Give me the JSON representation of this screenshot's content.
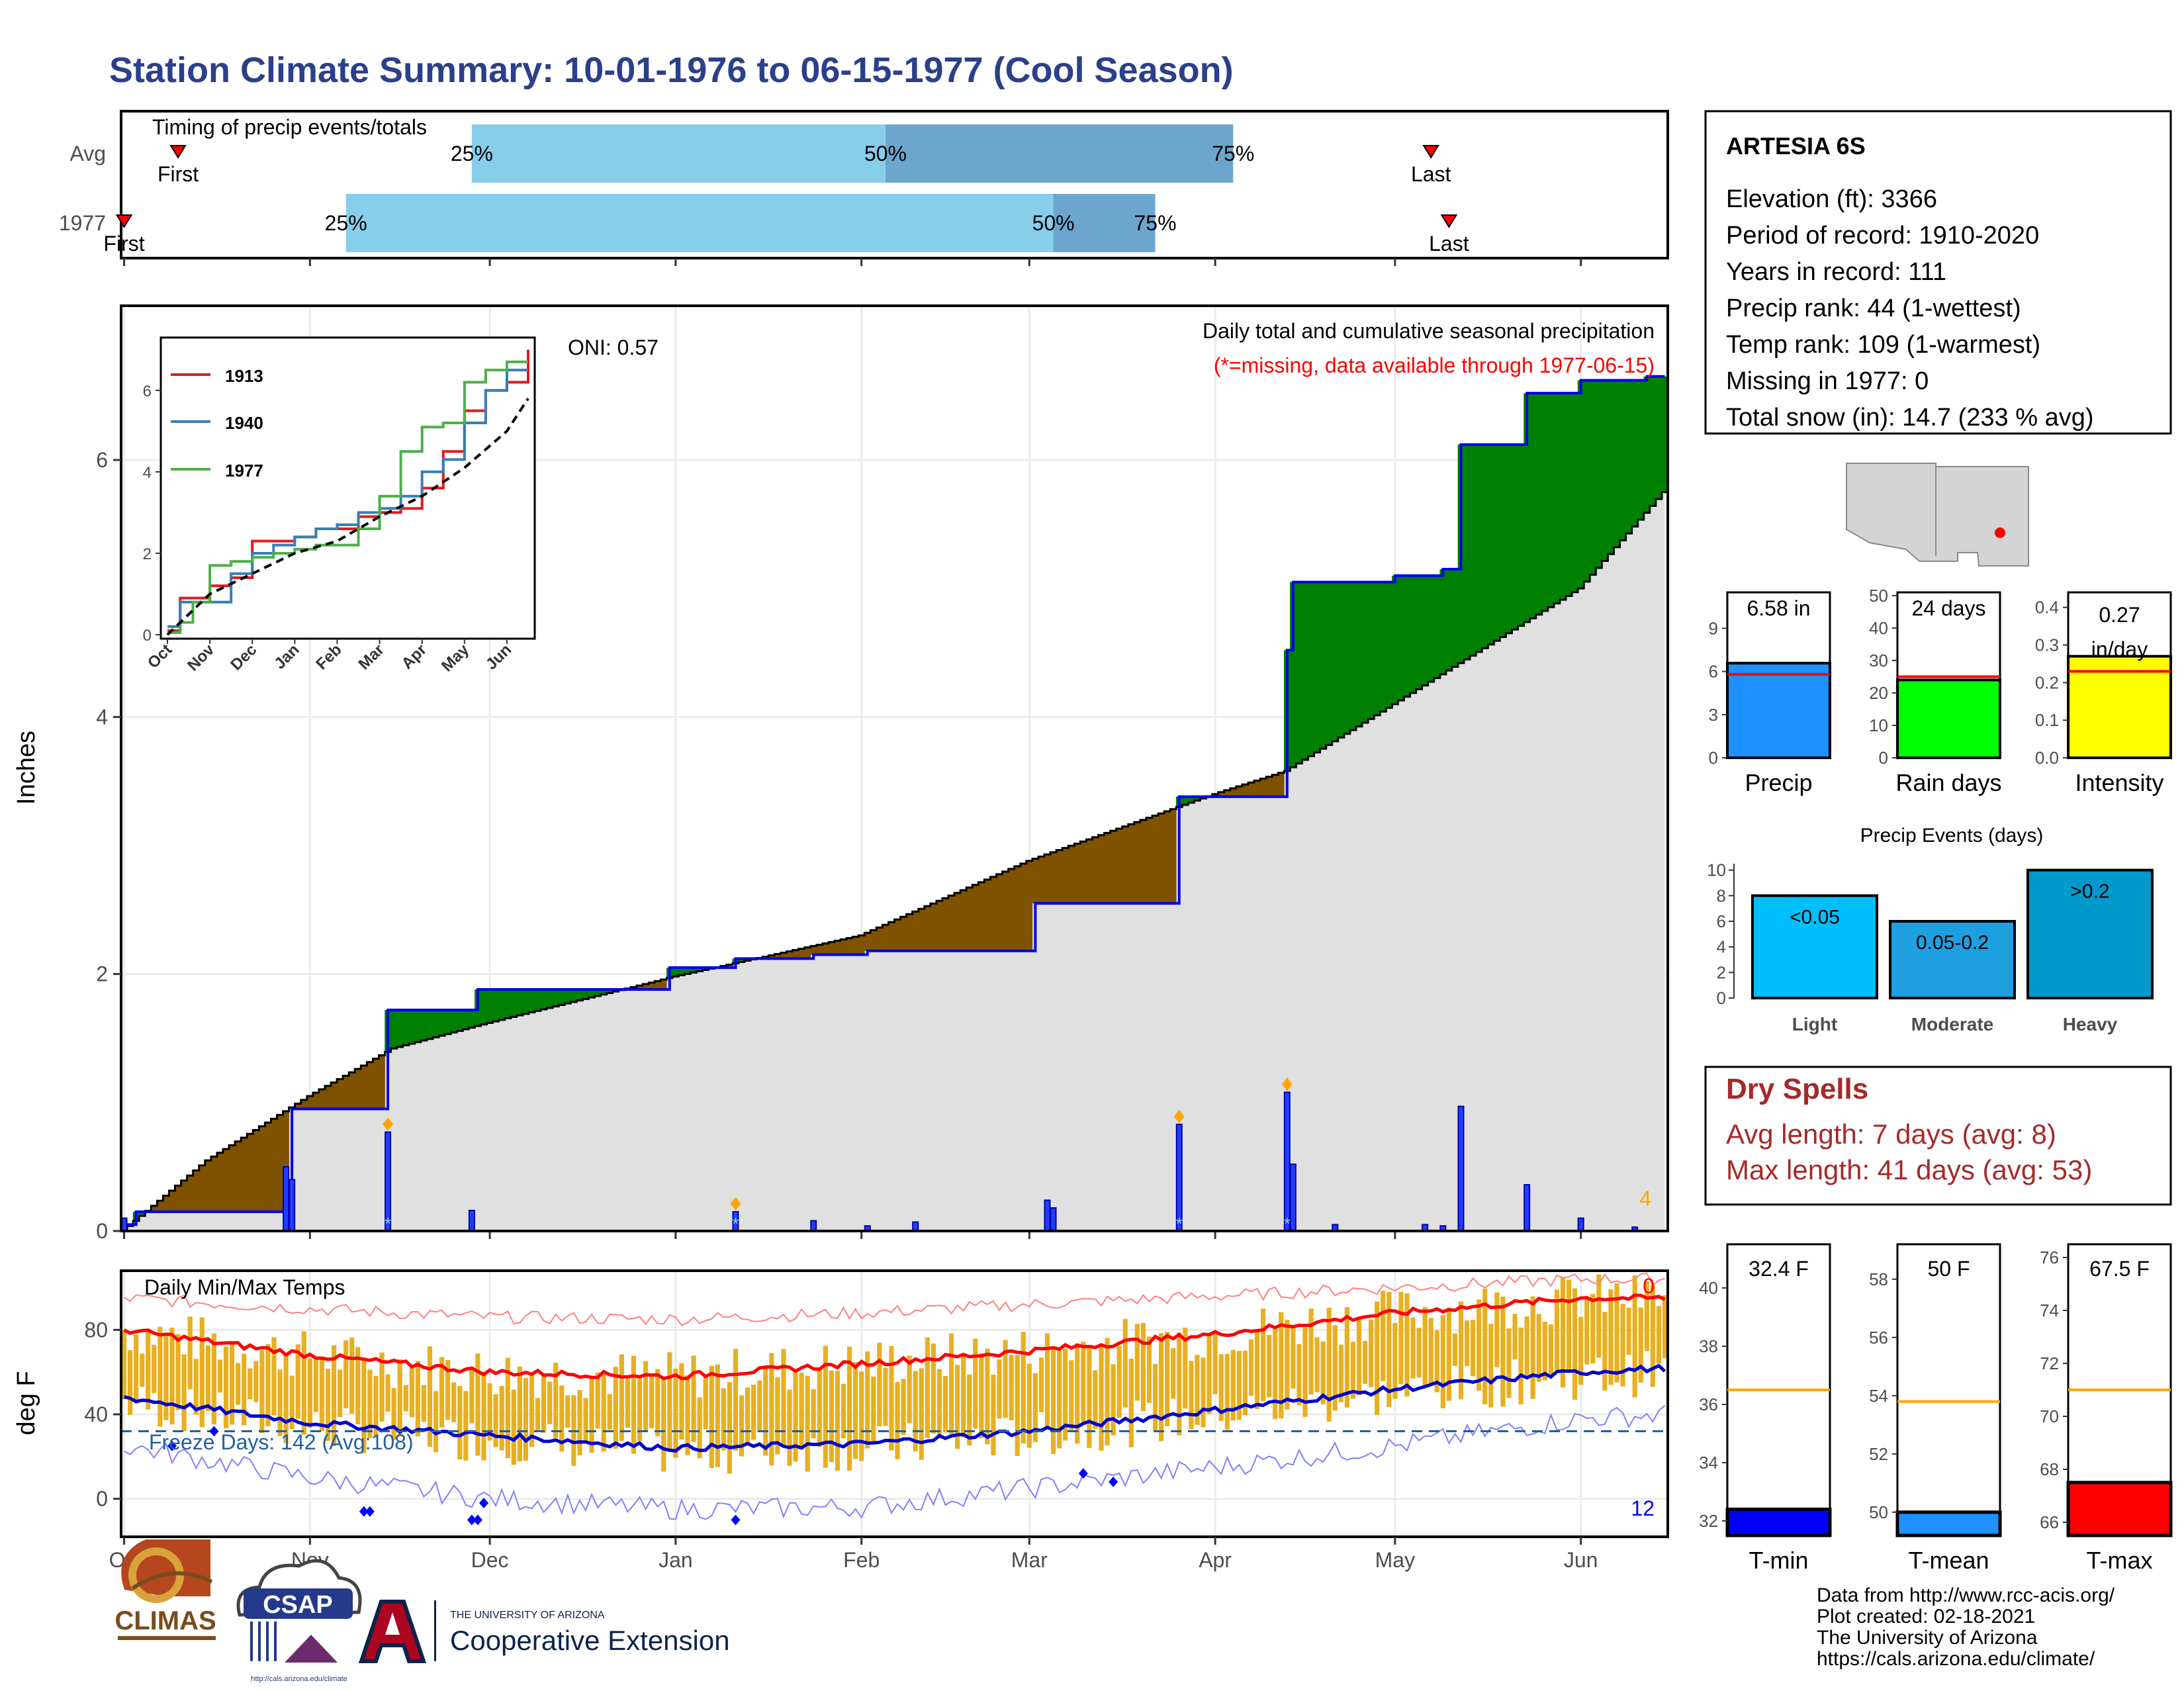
{
  "page": {
    "title": "Station Climate Summary: 10-01-1976 to 06-15-1977 (Cool Season)",
    "title_color": "#2b3f8a"
  },
  "timing": {
    "title": "Timing of precip events/totals",
    "rows": [
      {
        "label": "Avg",
        "q25": "25%",
        "q50": "50%",
        "q75": "75%",
        "first": "First",
        "last": "Last",
        "first_day": 9,
        "q25_day": 58,
        "q50_day": 127,
        "q75_day": 185,
        "last_day": 218
      },
      {
        "label": "1977",
        "q25": "25%",
        "q50": "50%",
        "q75": "75%",
        "first": "First",
        "last": "Last",
        "first_day": 0,
        "q25_day": 37,
        "q50_day": 155,
        "q75_day": 172,
        "last_day": 221
      }
    ]
  },
  "precip_panel": {
    "ylabel": "Inches",
    "oni": "ONI: 0.57",
    "header": "Daily total and cumulative seasonal precipitation",
    "missing_note": "(*=missing, data available through 1977-06-15)",
    "snow_count": "4",
    "yticks": [
      "0",
      "2",
      "4",
      "6"
    ],
    "colors": {
      "drier": "#7f5200",
      "wetter": "#008000",
      "avg_fill": "#e0e0e0",
      "obs_line": "#0000ee",
      "snow": "#ffa500"
    }
  },
  "inset": {
    "yticks": [
      "0",
      "2",
      "4",
      "6"
    ],
    "months": [
      "Oct",
      "Nov",
      "Dec",
      "Jan",
      "Feb",
      "Mar",
      "Apr",
      "May",
      "Jun"
    ],
    "legend": [
      {
        "name": "1913",
        "color": "#e41a1c"
      },
      {
        "name": "1940",
        "color": "#377eb8"
      },
      {
        "name": "1977",
        "color": "#4daf4a"
      }
    ]
  },
  "temp_panel": {
    "ylabel": "deg F",
    "title": "Daily Min/Max Temps",
    "freeze_label": "Freeze Days: 142 (Avg:108)",
    "hot_count": "0",
    "cold_count": "12",
    "yticks": [
      "0",
      "40",
      "80"
    ],
    "months": [
      "Oct",
      "Nov",
      "Dec",
      "Jan",
      "Feb",
      "Mar",
      "Apr",
      "May",
      "Jun"
    ]
  },
  "station": {
    "name": "ARTESIA 6S",
    "lines": [
      "Elevation (ft): 3366",
      "Period of record: 1910-2020",
      "Years in record: 111",
      "Precip rank: 44 (1-wettest)",
      "Temp rank: 109 (1-warmest)",
      "Missing in 1977: 0",
      "Total snow (in): 14.7 (233 % avg)"
    ]
  },
  "summary_bars": [
    {
      "label": "Precip",
      "value_text": "6.58 in",
      "value": 6.58,
      "avg": 5.8,
      "ymax": 11.5,
      "ticks": [
        "0",
        "3",
        "6",
        "9"
      ],
      "tick_vals": [
        0,
        3,
        6,
        9
      ],
      "color": "#1e90ff"
    },
    {
      "label": "Rain days",
      "value_text": "24 days",
      "value": 24,
      "avg": 25,
      "ymax": 51,
      "ticks": [
        "0",
        "10",
        "20",
        "30",
        "40",
        "50"
      ],
      "tick_vals": [
        0,
        10,
        20,
        30,
        40,
        50
      ],
      "color": "#00ff00"
    },
    {
      "label": "Intensity",
      "value_text": "0.27 in/day",
      "value": 0.27,
      "avg": 0.23,
      "ymax": 0.44,
      "ticks": [
        "0.0",
        "0.1",
        "0.2",
        "0.3",
        "0.4"
      ],
      "tick_vals": [
        0,
        0.1,
        0.2,
        0.3,
        0.4
      ],
      "color": "#ffff00"
    }
  ],
  "precip_events": {
    "title": "Precip Events (days)",
    "categories": [
      "Light",
      "Moderate",
      "Heavy"
    ],
    "bar_labels": [
      "<0.05",
      "0.05-0.2",
      ">0.2"
    ],
    "values": [
      8,
      6,
      10
    ],
    "ticks": [
      "0",
      "2",
      "4",
      "6",
      "8",
      "10"
    ],
    "colors": [
      "#00bfff",
      "#1e9fe0",
      "#0099cc"
    ]
  },
  "dry_spells": {
    "title": "Dry Spells",
    "avg_line": "Avg length: 7 days (avg: 8)",
    "max_line": "Max length: 41 days (avg: 53)",
    "color": "#a52a2a"
  },
  "temp_bars": [
    {
      "label": "T-min",
      "value_text": "32.4 F",
      "value": 32.4,
      "avg": 36.5,
      "ymin": 31.5,
      "ymax": 41.5,
      "ticks": [
        "32",
        "34",
        "36",
        "38",
        "40"
      ],
      "tick_vals": [
        32,
        34,
        36,
        38,
        40
      ],
      "color": "#0000ff"
    },
    {
      "label": "T-mean",
      "value_text": "50 F",
      "value": 50.0,
      "avg": 53.8,
      "ymin": 49.2,
      "ymax": 59.2,
      "ticks": [
        "50",
        "52",
        "54",
        "56",
        "58"
      ],
      "tick_vals": [
        50,
        52,
        54,
        56,
        58
      ],
      "color": "#1e90ff"
    },
    {
      "label": "T-max",
      "value_text": "67.5 F",
      "value": 67.5,
      "avg": 71.0,
      "ymin": 65.5,
      "ymax": 76.5,
      "ticks": [
        "66",
        "68",
        "70",
        "72",
        "74",
        "76"
      ],
      "tick_vals": [
        66,
        68,
        70,
        72,
        74,
        76
      ],
      "color": "#ff0000"
    }
  ],
  "logos": {
    "climas": "CLIMAS",
    "csap": "CSAP",
    "csap_url": "http://cals.arizona.edu/climate",
    "ua_small": "THE UNIVERSITY OF ARIZONA",
    "ua_big": "Cooperative Extension"
  },
  "credits": [
    "Data from http://www.rcc-acis.org/",
    "Plot created: 02-18-2021",
    "The University of Arizona",
    "https://cals.arizona.edu/climate/"
  ],
  "chart_data": [
    {
      "type": "area",
      "title": "Daily total and cumulative seasonal precipitation",
      "ylabel": "Inches",
      "ylim": [
        0,
        7.2
      ],
      "x_range": [
        "1976-10-01",
        "1977-06-15"
      ],
      "series": [
        {
          "name": "",
          "x": [
            "1976-10-01",
            "1976-10-03",
            "1976-10-29",
            "1976-11-14",
            "1976-11-29",
            "1976-12-31",
            "1977-01-11",
            "1977-01-24",
            "1977-02-02",
            "1977-03-02",
            "1977-03-26",
            "1977-04-13",
            "1977-04-14",
            "1977-05-01",
            "1977-05-09",
            "1977-05-12",
            "1977-05-23",
            "1977-06-01",
            "1977-06-12",
            "1977-06-15"
          ],
          "values": [
            0.05,
            0.15,
            0.95,
            1.72,
            1.88,
            2.05,
            2.12,
            2.15,
            2.18,
            2.55,
            3.38,
            4.52,
            5.05,
            5.1,
            5.15,
            6.12,
            6.52,
            6.62,
            6.65,
            6.65
          ]
        }
      ],
      "daily_precip": {
        "dates": [
          "1976-10-01",
          "1976-10-28",
          "1976-10-29",
          "1976-11-14",
          "1976-11-28",
          "1977-01-11",
          "1977-01-24",
          "1977-02-02",
          "1977-02-10",
          "1977-03-04",
          "1977-03-05",
          "1977-03-26",
          "1977-04-13",
          "1977-04-14",
          "1977-04-21",
          "1977-05-06",
          "1977-05-09",
          "1977-05-12",
          "1977-05-23",
          "1977-06-01",
          "1977-06-10"
        ],
        "values": [
          0.1,
          0.5,
          0.4,
          0.77,
          0.16,
          0.15,
          0.08,
          0.04,
          0.07,
          0.24,
          0.18,
          0.83,
          1.08,
          0.52,
          0.05,
          0.05,
          0.04,
          0.97,
          0.36,
          0.1,
          0.03
        ],
        "snow_dates": [
          "1976-11-14",
          "1977-01-11",
          "1977-03-26",
          "1977-04-13"
        ]
      },
      "avg_cumulative": {
        "dates": [
          "1976-10-01",
          "1976-10-15",
          "1976-11-01",
          "1976-11-15",
          "1976-12-01",
          "1977-01-01",
          "1977-02-01",
          "1977-03-01",
          "1977-04-01",
          "1977-04-13",
          "1977-05-01",
          "1977-06-01",
          "1977-06-15"
        ],
        "values": [
          0.0,
          0.55,
          1.05,
          1.42,
          1.62,
          1.98,
          2.3,
          2.88,
          3.4,
          3.58,
          4.1,
          5.0,
          5.75
        ]
      }
    },
    {
      "type": "line",
      "title": "",
      "ylim": [
        0,
        7.2
      ],
      "series": [
        {
          "name": "1913",
          "months": [
            0,
            0.3,
            0.6,
            1.0,
            1.5,
            2.0,
            2.5,
            3.0,
            3.5,
            4.0,
            4.5,
            5.0,
            5.5,
            6.0,
            6.5,
            7.0,
            7.5,
            8.0,
            8.5
          ],
          "values": [
            0.1,
            0.9,
            0.9,
            1.2,
            1.4,
            2.3,
            2.3,
            2.4,
            2.6,
            2.6,
            2.9,
            3.0,
            3.1,
            3.6,
            4.5,
            5.5,
            6.0,
            6.2,
            7.0
          ]
        },
        {
          "name": "1940",
          "months": [
            0,
            0.3,
            0.6,
            1.0,
            1.5,
            2.0,
            2.5,
            3.0,
            3.5,
            4.0,
            4.5,
            5.0,
            5.5,
            6.0,
            6.5,
            7.0,
            7.5,
            8.0,
            8.5
          ],
          "values": [
            0.2,
            0.8,
            0.8,
            0.8,
            1.5,
            2.0,
            2.2,
            2.4,
            2.6,
            2.7,
            3.0,
            3.1,
            3.4,
            4.0,
            4.3,
            5.2,
            6.0,
            6.5,
            6.5
          ]
        },
        {
          "name": "1977",
          "months": [
            0,
            0.3,
            0.6,
            1.0,
            1.5,
            2.0,
            2.5,
            3.0,
            3.5,
            4.0,
            4.5,
            5.0,
            5.5,
            6.0,
            6.5,
            7.0,
            7.5,
            8.0,
            8.5
          ],
          "values": [
            0.05,
            0.3,
            0.8,
            1.7,
            1.8,
            1.9,
            2.0,
            2.1,
            2.2,
            2.2,
            2.6,
            3.4,
            4.5,
            5.1,
            5.2,
            6.2,
            6.5,
            6.7,
            6.7
          ]
        },
        {
          "name": "",
          "months": [
            0,
            1,
            2,
            3,
            4,
            5,
            6,
            7,
            8,
            8.5
          ],
          "values": [
            0.0,
            1.0,
            1.5,
            2.0,
            2.3,
            2.9,
            3.4,
            4.1,
            5.0,
            5.8
          ]
        }
      ]
    },
    {
      "type": "bar",
      "title": "Daily Min/Max Temps",
      "ylabel": "deg F",
      "ylim": [
        -18,
        108
      ],
      "x_range": [
        "1976-10-01",
        "1977-06-15"
      ],
      "series": [
        {
          "name": "",
          "months": [
            0,
            1,
            2,
            3,
            4,
            5,
            6,
            7,
            8,
            8.5
          ],
          "values": [
            80,
            68,
            60,
            58,
            64,
            70,
            78,
            88,
            95,
            95
          ]
        },
        {
          "name": "",
          "months": [
            0,
            1,
            2,
            3,
            4,
            5,
            6,
            7,
            8,
            8.5
          ],
          "values": [
            48,
            36,
            30,
            24,
            26,
            32,
            42,
            52,
            60,
            62
          ]
        },
        {
          "name": "",
          "months": [
            0,
            1,
            2,
            3,
            4,
            5,
            6,
            7,
            8,
            8.5
          ],
          "values": [
            95,
            90,
            86,
            85,
            88,
            92,
            96,
            100,
            104,
            104
          ]
        },
        {
          "name": "",
          "months": [
            0,
            1,
            2,
            3,
            4,
            5,
            6,
            7,
            8,
            8.5
          ],
          "values": [
            25,
            10,
            0,
            -5,
            -4,
            5,
            15,
            25,
            38,
            40
          ]
        }
      ],
      "freeze_threshold": 32
    },
    {
      "type": "bar",
      "title": "",
      "categories": [
        "Light",
        "Moderate",
        "Heavy"
      ],
      "values": [
        8,
        6,
        10
      ]
    }
  ]
}
